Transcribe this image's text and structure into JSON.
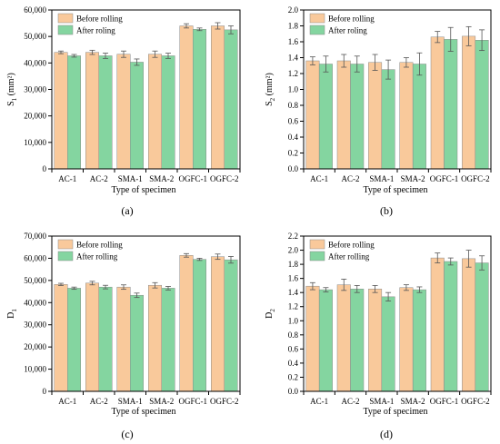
{
  "colors": {
    "before": "#F9C99B",
    "after": "#84D5A0",
    "axis": "#000000",
    "error": "#555555"
  },
  "chart_data": [
    {
      "type": "bar",
      "panel_label": "(a)",
      "categories": [
        "AC-1",
        "AC-2",
        "SMA-1",
        "SMA-2",
        "OGFC-1",
        "OGFC-2"
      ],
      "series": [
        {
          "name": "Before rolling",
          "values": [
            44000,
            44000,
            43300,
            43300,
            54000,
            54000
          ],
          "error": [
            500,
            800,
            1200,
            1200,
            800,
            1200
          ]
        },
        {
          "name": "After roling",
          "values": [
            42700,
            42700,
            40300,
            42700,
            52700,
            52500
          ],
          "error": [
            500,
            1000,
            1200,
            1000,
            500,
            1500
          ]
        }
      ],
      "ylabel_main": "S",
      "ylabel_sub": "1",
      "ylabel_unit": " (mm²)",
      "xlabel": "Type of specimen",
      "ylim": [
        0,
        60000
      ],
      "yticks": [
        0,
        10000,
        20000,
        30000,
        40000,
        50000,
        60000
      ],
      "ytick_labels": [
        "0",
        "10,000",
        "20,000",
        "30,000",
        "40,000",
        "50,000",
        "60,000"
      ],
      "legend_position": "top-left",
      "grid": false
    },
    {
      "type": "bar",
      "panel_label": "(b)",
      "categories": [
        "AC-1",
        "AC-2",
        "SMA-1",
        "SMA-2",
        "OGFC-1",
        "OGFC-2"
      ],
      "series": [
        {
          "name": "Before rolling",
          "values": [
            1.36,
            1.36,
            1.34,
            1.34,
            1.66,
            1.67
          ],
          "error": [
            0.05,
            0.08,
            0.1,
            0.06,
            0.07,
            0.12
          ]
        },
        {
          "name": "After roling",
          "values": [
            1.32,
            1.32,
            1.25,
            1.32,
            1.63,
            1.62
          ],
          "error": [
            0.1,
            0.1,
            0.12,
            0.14,
            0.15,
            0.13
          ]
        }
      ],
      "ylabel_main": "S",
      "ylabel_sub": "2",
      "ylabel_unit": " (mm²)",
      "xlabel": "Type of specimen",
      "ylim": [
        0,
        2.0
      ],
      "yticks": [
        0,
        0.2,
        0.4,
        0.6,
        0.8,
        1.0,
        1.2,
        1.4,
        1.6,
        1.8,
        2.0
      ],
      "ytick_labels": [
        "0.0",
        "0.2",
        "0.4",
        "0.6",
        "0.8",
        "1.0",
        "1.2",
        "1.4",
        "1.6",
        "1.8",
        "2.0"
      ],
      "legend_position": "top-left",
      "grid": false
    },
    {
      "type": "bar",
      "panel_label": "(c)",
      "categories": [
        "AC-1",
        "AC-2",
        "SMA-1",
        "SMA-2",
        "OGFC-1",
        "OGFC-2"
      ],
      "series": [
        {
          "name": "Before rolling",
          "values": [
            48200,
            48800,
            47000,
            47800,
            61300,
            60700
          ],
          "error": [
            500,
            800,
            1000,
            1200,
            800,
            1200
          ]
        },
        {
          "name": "After rolling",
          "values": [
            46500,
            47000,
            43300,
            46500,
            59500,
            59300
          ],
          "error": [
            500,
            800,
            1000,
            800,
            500,
            1500
          ]
        }
      ],
      "ylabel_main": "D",
      "ylabel_sub": "1",
      "ylabel_unit": "",
      "xlabel": "Type of specimen",
      "ylim": [
        0,
        70000
      ],
      "yticks": [
        0,
        10000,
        20000,
        30000,
        40000,
        50000,
        60000,
        70000
      ],
      "ytick_labels": [
        "0",
        "10,000",
        "20,000",
        "30,000",
        "40,000",
        "50,000",
        "60,000",
        "70,000"
      ],
      "legend_position": "top-left",
      "grid": false
    },
    {
      "type": "bar",
      "panel_label": "(d)",
      "categories": [
        "AC-1",
        "AC-2",
        "SMA-1",
        "SMA-2",
        "OGFC-1",
        "OGFC-2"
      ],
      "series": [
        {
          "name": "Before rolling",
          "values": [
            1.49,
            1.51,
            1.45,
            1.47,
            1.89,
            1.88
          ],
          "error": [
            0.05,
            0.08,
            0.05,
            0.04,
            0.07,
            0.12
          ]
        },
        {
          "name": "After rolling",
          "values": [
            1.44,
            1.45,
            1.34,
            1.44,
            1.84,
            1.82
          ],
          "error": [
            0.03,
            0.05,
            0.06,
            0.04,
            0.05,
            0.1
          ]
        }
      ],
      "ylabel_main": "D",
      "ylabel_sub": "2",
      "ylabel_unit": "",
      "xlabel": "Type of specimen",
      "ylim": [
        0,
        2.2
      ],
      "yticks": [
        0,
        0.2,
        0.4,
        0.6,
        0.8,
        1.0,
        1.2,
        1.4,
        1.6,
        1.8,
        2.0,
        2.2
      ],
      "ytick_labels": [
        "0.0",
        "0.2",
        "0.4",
        "0.6",
        "0.8",
        "1.0",
        "1.2",
        "1.4",
        "1.6",
        "1.8",
        "2.0",
        "2.2"
      ],
      "legend_position": "top-left",
      "grid": false
    }
  ]
}
